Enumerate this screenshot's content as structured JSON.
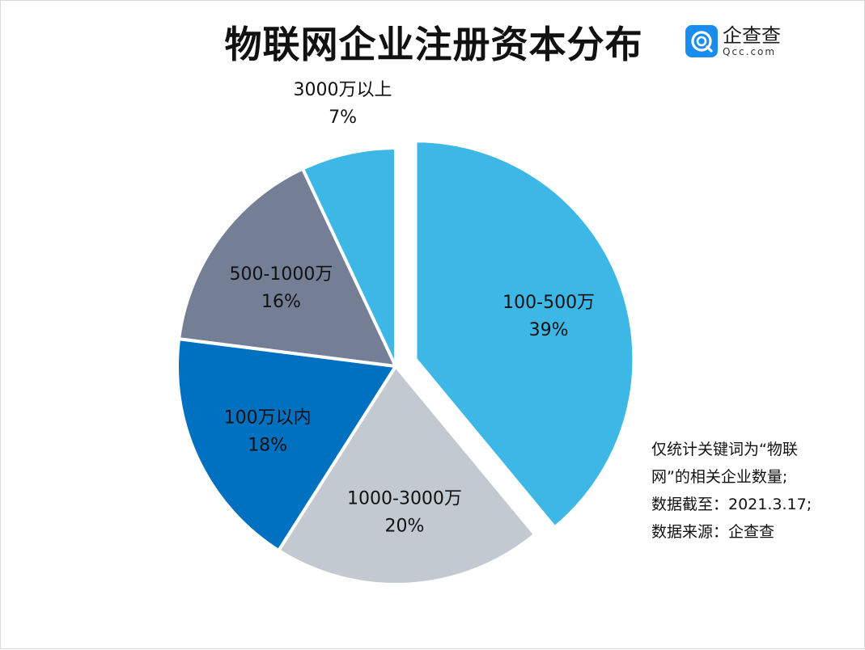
{
  "title": "物联网企业注册资本分布",
  "logo": {
    "name_cn": "企查查",
    "name_en": "Qcc.com",
    "icon": "qcc-logo-icon",
    "color": "#1a8cf0"
  },
  "chart_data": {
    "type": "pie",
    "unit": "%",
    "slices": [
      {
        "label": "100-500万",
        "value": 39,
        "display": "39%",
        "color": "#3db8e6",
        "exploded": true
      },
      {
        "label": "1000-3000万",
        "value": 20,
        "display": "20%",
        "color": "#c3c9d1",
        "exploded": false
      },
      {
        "label": "100万以内",
        "value": 18,
        "display": "18%",
        "color": "#0070c0",
        "exploded": false
      },
      {
        "label": "500-1000万",
        "value": 16,
        "display": "16%",
        "color": "#747f96",
        "exploded": false
      },
      {
        "label": "3000万以上",
        "value": 7,
        "display": "7%",
        "color": "#3db8e6",
        "exploded": false
      }
    ]
  },
  "note": {
    "lines": [
      "仅统计关键词为“物联",
      "网”的相关企业数量;",
      "数据截至：2021.3.17;",
      "数据来源：企查查"
    ]
  }
}
